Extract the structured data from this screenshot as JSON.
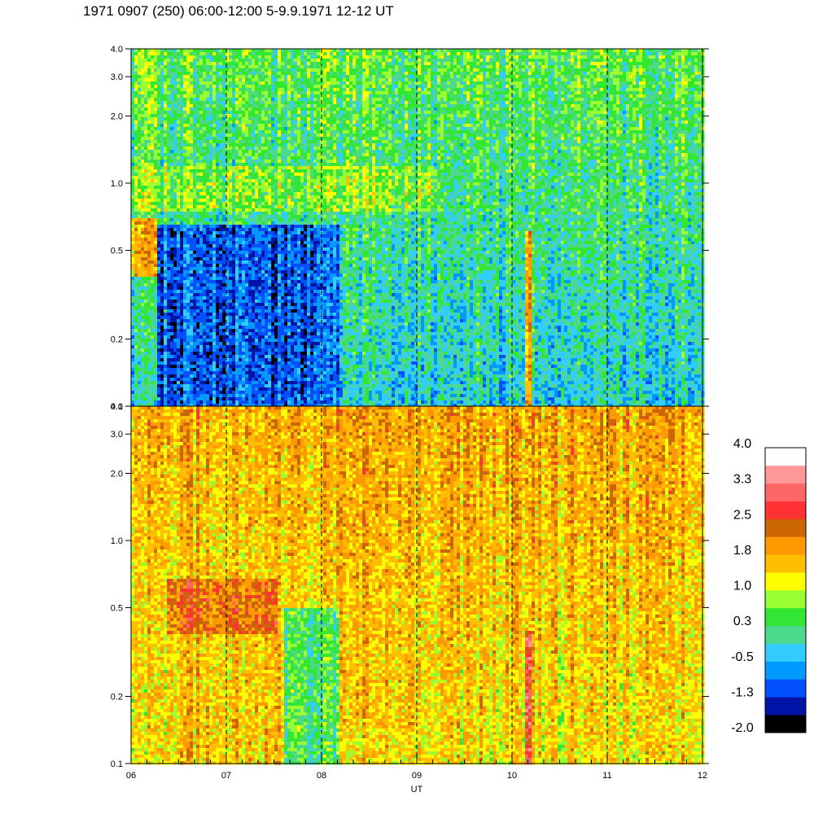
{
  "title": "1971 0907 (250) 06:00-12:00 5-9.9.1971  12-12 UT",
  "chart_data": {
    "type": "heatmap",
    "xlabel": "UT",
    "x_ticks": [
      "06",
      "07",
      "08",
      "09",
      "10",
      "11",
      "12"
    ],
    "xlim": [
      6,
      12
    ],
    "dashed_hours": [
      7,
      8,
      9,
      10,
      11
    ],
    "panels": [
      {
        "name": "upper",
        "ylim": [
          0.1,
          4.0
        ],
        "y_scale": "log",
        "y_ticks": [
          "0.1",
          "0.2",
          "0.5",
          "1.0",
          "2.0",
          "3.0",
          "4.0"
        ],
        "y_tick_values": [
          0.1,
          0.2,
          0.5,
          1.0,
          2.0,
          3.0,
          4.0
        ],
        "base_level": -0.3,
        "features": [
          {
            "x": [
              6.0,
              6.27
            ],
            "y": [
              0.38,
              0.7
            ],
            "level": 1.6
          },
          {
            "x": [
              6.27,
              8.2
            ],
            "y": [
              0.1,
              0.65
            ],
            "level": -1.0
          },
          {
            "x": [
              10.12,
              10.22
            ],
            "y": [
              0.1,
              0.6
            ],
            "level": 1.9
          },
          {
            "x": [
              6.0,
              9.2
            ],
            "y": [
              0.75,
              1.2
            ],
            "level": 0.7
          }
        ]
      },
      {
        "name": "lower",
        "ylim": [
          0.1,
          4.0
        ],
        "y_scale": "log",
        "y_ticks": [
          "0.1",
          "0.2",
          "0.5",
          "1.0",
          "2.0",
          "3.0",
          "4.0"
        ],
        "y_tick_values": [
          0.1,
          0.2,
          0.5,
          1.0,
          2.0,
          3.0,
          4.0
        ],
        "base_level": 1.3,
        "features": [
          {
            "x": [
              6.38,
              7.53
            ],
            "y": [
              0.38,
              0.68
            ],
            "level": 2.3
          },
          {
            "x": [
              6.38,
              7.6
            ],
            "y": [
              0.1,
              0.38
            ],
            "level": 1.6
          },
          {
            "x": [
              7.6,
              8.2
            ],
            "y": [
              0.1,
              0.5
            ],
            "level": 0.4
          },
          {
            "x": [
              10.12,
              10.22
            ],
            "y": [
              0.1,
              0.4
            ],
            "level": 2.8
          },
          {
            "x": [
              8.2,
              9.0
            ],
            "y": [
              0.15,
              0.45
            ],
            "level": 1.5
          }
        ]
      }
    ],
    "colorbar": {
      "labels": [
        "4.0",
        "3.3",
        "2.5",
        "1.8",
        "1.0",
        "0.3",
        "-0.5",
        "-1.3",
        "-2.0"
      ],
      "vmin": -2.0,
      "vmax": 4.0,
      "colors": [
        "#000000",
        "#0014a6",
        "#0050ff",
        "#0099ff",
        "#33ccff",
        "#4cd98c",
        "#33e633",
        "#99ff33",
        "#ffff00",
        "#ffbf00",
        "#ff9900",
        "#cc6600",
        "#ff3333",
        "#ff6666",
        "#ff9999",
        "#ffffff"
      ]
    }
  }
}
